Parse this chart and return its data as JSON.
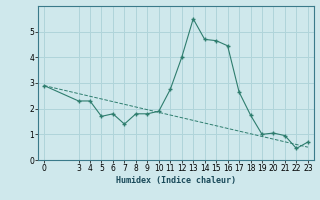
{
  "xlabel": "Humidex (Indice chaleur)",
  "x_values": [
    0,
    3,
    4,
    5,
    6,
    7,
    8,
    9,
    10,
    11,
    12,
    13,
    14,
    15,
    16,
    17,
    18,
    19,
    20,
    21,
    22,
    23
  ],
  "y_values": [
    2.9,
    2.3,
    2.3,
    1.7,
    1.8,
    1.4,
    1.8,
    1.8,
    1.9,
    2.75,
    4.0,
    5.5,
    4.7,
    4.65,
    4.45,
    2.65,
    1.75,
    1.0,
    1.05,
    0.95,
    0.45,
    0.7
  ],
  "trend_x": [
    0,
    23
  ],
  "trend_y": [
    2.9,
    0.5
  ],
  "line_color": "#2e7d6e",
  "bg_color": "#cfe8ec",
  "grid_color": "#b0d4da",
  "ylim": [
    0,
    6
  ],
  "xlim": [
    -0.5,
    23.5
  ],
  "yticks": [
    0,
    1,
    2,
    3,
    4,
    5
  ],
  "xticks": [
    0,
    3,
    4,
    5,
    6,
    7,
    8,
    9,
    10,
    11,
    12,
    13,
    14,
    15,
    16,
    17,
    18,
    19,
    20,
    21,
    22,
    23
  ]
}
